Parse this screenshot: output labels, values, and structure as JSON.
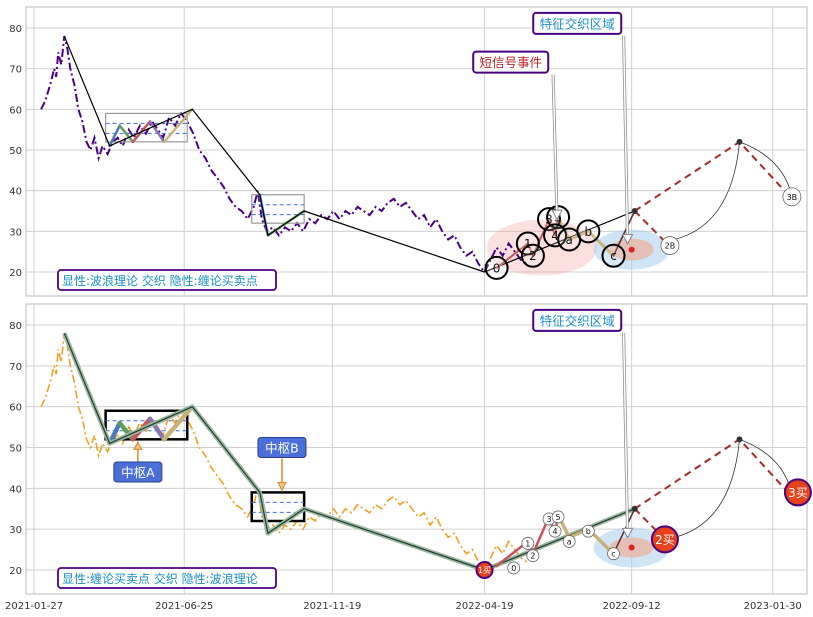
{
  "chart_data": [
    {
      "type": "line",
      "x_date_range": [
        "2021-01-19",
        "2023-03-05"
      ],
      "ylim": [
        15,
        85
      ],
      "yticks": [
        20,
        30,
        40,
        50,
        60,
        70,
        80
      ],
      "grid": true,
      "colors": {
        "price": "#4b0082",
        "zigzag": "#000000",
        "projection": "#a52a2a",
        "ellipse_red": "#f4a7a3",
        "ellipse_blue": "#a8cfee",
        "callout_border": "#4b0082",
        "legend_text": "#1a8fc4"
      },
      "price_series": [
        [
          "2021-02-03",
          60
        ],
        [
          "2021-02-07",
          62
        ],
        [
          "2021-02-12",
          66
        ],
        [
          "2021-02-16",
          70
        ],
        [
          "2021-02-18",
          68
        ],
        [
          "2021-02-20",
          74
        ],
        [
          "2021-02-23",
          71
        ],
        [
          "2021-02-26",
          78
        ],
        [
          "2021-03-01",
          75
        ],
        [
          "2021-03-04",
          70
        ],
        [
          "2021-03-08",
          66
        ],
        [
          "2021-03-12",
          60
        ],
        [
          "2021-03-16",
          57
        ],
        [
          "2021-03-20",
          52
        ],
        [
          "2021-03-24",
          50
        ],
        [
          "2021-03-28",
          53
        ],
        [
          "2021-04-01",
          48
        ],
        [
          "2021-04-05",
          51
        ],
        [
          "2021-04-10",
          49
        ],
        [
          "2021-04-15",
          52
        ],
        [
          "2021-04-20",
          53
        ],
        [
          "2021-04-25",
          51
        ],
        [
          "2021-05-01",
          55
        ],
        [
          "2021-05-06",
          53
        ],
        [
          "2021-05-12",
          56
        ],
        [
          "2021-05-18",
          54
        ],
        [
          "2021-05-24",
          57
        ],
        [
          "2021-05-30",
          55
        ],
        [
          "2021-06-04",
          53
        ],
        [
          "2021-06-10",
          58
        ],
        [
          "2021-06-16",
          56
        ],
        [
          "2021-06-22",
          59
        ],
        [
          "2021-06-28",
          57
        ],
        [
          "2021-07-04",
          54
        ],
        [
          "2021-07-10",
          50
        ],
        [
          "2021-07-16",
          48
        ],
        [
          "2021-07-22",
          45
        ],
        [
          "2021-07-28",
          43
        ],
        [
          "2021-08-03",
          41
        ],
        [
          "2021-08-09",
          38
        ],
        [
          "2021-08-15",
          36
        ],
        [
          "2021-08-21",
          35
        ],
        [
          "2021-08-27",
          33
        ],
        [
          "2021-09-02",
          36
        ],
        [
          "2021-09-06",
          40
        ],
        [
          "2021-09-10",
          33
        ],
        [
          "2021-09-15",
          30
        ],
        [
          "2021-09-21",
          31
        ],
        [
          "2021-09-27",
          29
        ],
        [
          "2021-10-03",
          31
        ],
        [
          "2021-10-09",
          30
        ],
        [
          "2021-10-15",
          32
        ],
        [
          "2021-10-21",
          30
        ],
        [
          "2021-10-27",
          33
        ],
        [
          "2021-11-02",
          32
        ],
        [
          "2021-11-08",
          34
        ],
        [
          "2021-11-14",
          33
        ],
        [
          "2021-11-20",
          35
        ],
        [
          "2021-11-26",
          33
        ],
        [
          "2021-12-02",
          35
        ],
        [
          "2021-12-08",
          34
        ],
        [
          "2021-12-14",
          36
        ],
        [
          "2021-12-20",
          35
        ],
        [
          "2021-12-26",
          34
        ],
        [
          "2022-01-01",
          36
        ],
        [
          "2022-01-07",
          35
        ],
        [
          "2022-01-13",
          37
        ],
        [
          "2022-01-19",
          38
        ],
        [
          "2022-01-25",
          36
        ],
        [
          "2022-01-31",
          37
        ],
        [
          "2022-02-06",
          35
        ],
        [
          "2022-02-12",
          33
        ],
        [
          "2022-02-18",
          34
        ],
        [
          "2022-02-24",
          31
        ],
        [
          "2022-03-02",
          33
        ],
        [
          "2022-03-08",
          30
        ],
        [
          "2022-03-14",
          28
        ],
        [
          "2022-03-20",
          29
        ],
        [
          "2022-03-26",
          26
        ],
        [
          "2022-04-01",
          24
        ],
        [
          "2022-04-07",
          25
        ],
        [
          "2022-04-13",
          22
        ],
        [
          "2022-04-19",
          20
        ],
        [
          "2022-04-25",
          23
        ],
        [
          "2022-05-01",
          26
        ],
        [
          "2022-05-07",
          24
        ],
        [
          "2022-05-13",
          27
        ],
        [
          "2022-05-19",
          25
        ],
        [
          "2022-05-25",
          23
        ],
        [
          "2022-05-31",
          22
        ]
      ],
      "zigzag": [
        [
          "2021-02-26",
          78
        ],
        [
          "2021-04-12",
          51
        ],
        [
          "2021-07-03",
          60
        ],
        [
          "2021-09-08",
          39
        ],
        [
          "2021-09-16",
          29
        ],
        [
          "2021-10-22",
          35
        ],
        [
          "2022-04-19",
          20
        ],
        [
          "2022-09-15",
          35
        ]
      ],
      "zhongshu_boxes": [
        {
          "x0": "2021-04-08",
          "x1": "2021-06-28",
          "y0": 52,
          "y1": 59
        },
        {
          "x0": "2021-08-31",
          "x1": "2021-10-22",
          "y0": 32,
          "y1": 39
        }
      ],
      "projection": [
        [
          "2022-09-15",
          35
        ],
        [
          "2022-12-28",
          52
        ],
        [
          "2023-02-18",
          38
        ]
      ],
      "wave_labels": [
        {
          "label": "0",
          "x": "2022-05-01",
          "y": 21
        },
        {
          "label": "1",
          "x": "2022-06-01",
          "y": 27
        },
        {
          "label": "2",
          "x": "2022-06-06",
          "y": 24
        },
        {
          "label": "3",
          "x": "2022-06-22",
          "y": 33
        },
        {
          "label": "5",
          "x": "2022-07-01",
          "y": 33.5
        },
        {
          "label": "4",
          "x": "2022-06-28",
          "y": 29
        },
        {
          "label": "a",
          "x": "2022-07-12",
          "y": 28
        },
        {
          "label": "b",
          "x": "2022-07-31",
          "y": 30
        },
        {
          "label": "c",
          "x": "2022-08-25",
          "y": 24
        },
        {
          "label": "2B",
          "x": "2022-10-20",
          "y": 26.5
        },
        {
          "label": "3B",
          "x": "2023-02-18",
          "y": 38.5
        }
      ],
      "callouts": [
        {
          "text": "特征交织区域",
          "x": "2022-07-20",
          "y": 81,
          "arrow_to": [
            "2022-09-08",
            27
          ]
        },
        {
          "text": "短信号事件",
          "x": "2022-05-15",
          "y": 71.5,
          "arrow_to": [
            "2022-06-30",
            33
          ]
        }
      ],
      "legend": "显性:波浪理论 交织 隐性:缠论买卖点"
    },
    {
      "type": "line",
      "x_date_range": [
        "2021-01-19",
        "2023-03-05"
      ],
      "ylim": [
        14,
        85
      ],
      "yticks": [
        20,
        30,
        40,
        50,
        60,
        70,
        80
      ],
      "xticks": [
        "2021-01-27",
        "2021-06-25",
        "2021-11-19",
        "2022-04-19",
        "2022-09-12",
        "2023-01-30"
      ],
      "grid": true,
      "colors": {
        "price": "#f0a020",
        "zigzag": "#1f3d3a",
        "projection": "#a52a2a",
        "buy_point": "#e8421b",
        "box": "#000000",
        "box_label": "#4a6fd8"
      },
      "zigzag": [
        [
          "2021-02-26",
          78
        ],
        [
          "2021-04-12",
          51
        ],
        [
          "2021-07-03",
          60
        ],
        [
          "2021-09-08",
          39
        ],
        [
          "2021-09-16",
          29
        ],
        [
          "2021-10-22",
          35
        ],
        [
          "2022-04-19",
          20
        ],
        [
          "2022-09-15",
          35
        ]
      ],
      "zhongshu_boxes": [
        {
          "label": "中枢A",
          "x0": "2021-04-08",
          "x1": "2021-06-28",
          "y0": 52,
          "y1": 59
        },
        {
          "label": "中枢B",
          "x0": "2021-08-31",
          "x1": "2021-10-22",
          "y0": 32,
          "y1": 39
        }
      ],
      "projection": [
        [
          "2022-09-15",
          35
        ],
        [
          "2022-12-28",
          52
        ],
        [
          "2023-02-18",
          38
        ]
      ],
      "buy_points": [
        {
          "label": "1买",
          "x": "2022-04-19",
          "y": 20
        },
        {
          "label": "2买",
          "x": "2022-10-15",
          "y": 27.5
        },
        {
          "label": "3买",
          "x": "2023-02-24",
          "y": 39
        }
      ],
      "wave_labels": [
        {
          "label": "0",
          "x": "2022-05-18",
          "y": 20.5
        },
        {
          "label": "1",
          "x": "2022-06-01",
          "y": 26.5
        },
        {
          "label": "2",
          "x": "2022-06-06",
          "y": 23.5
        },
        {
          "label": "3",
          "x": "2022-06-22",
          "y": 32.5
        },
        {
          "label": "5",
          "x": "2022-07-01",
          "y": 33
        },
        {
          "label": "4",
          "x": "2022-06-28",
          "y": 29.5
        },
        {
          "label": "a",
          "x": "2022-07-12",
          "y": 27
        },
        {
          "label": "b",
          "x": "2022-07-31",
          "y": 29.5
        },
        {
          "label": "c",
          "x": "2022-08-25",
          "y": 24
        }
      ],
      "callouts": [
        {
          "text": "特征交织区域",
          "x": "2022-07-20",
          "y": 81,
          "arrow_to": [
            "2022-09-08",
            28
          ]
        }
      ],
      "legend": "显性:缠论买卖点 交织 隐性:波浪理论"
    }
  ]
}
